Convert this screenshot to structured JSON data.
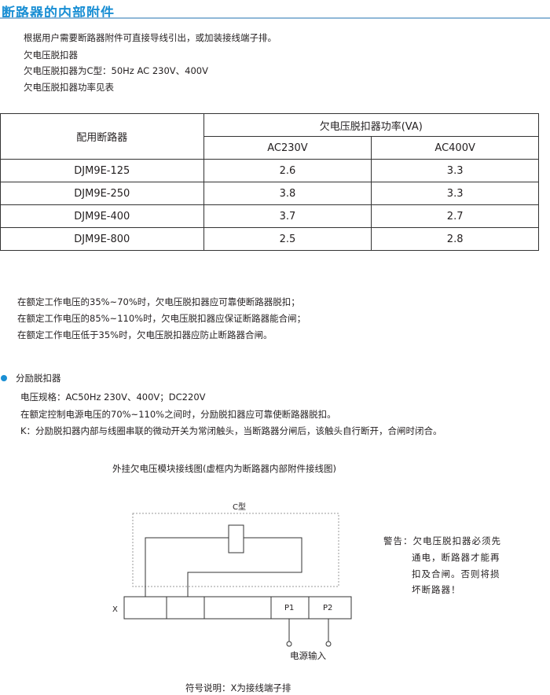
{
  "title": "断路器的内部附件",
  "intro": [
    "根据用户需要断路器附件可直接导线引出，或加装接线端子排。",
    "欠电压脱扣器",
    "欠电压脱扣器为C型：50Hz AC 230V、400V",
    "欠电压脱扣器功率见表"
  ],
  "table": {
    "col_header": "配用断路器",
    "group_header": "欠电压脱扣器功率(VA)",
    "sub_headers": [
      "AC230V",
      "AC400V"
    ],
    "rows": [
      [
        "DJM9E-125",
        "2.6",
        "3.3"
      ],
      [
        "DJM9E-250",
        "3.8",
        "3.3"
      ],
      [
        "DJM9E-400",
        "3.7",
        "2.7"
      ],
      [
        "DJM9E-800",
        "2.5",
        "2.8"
      ]
    ]
  },
  "conditions": [
    "在额定工作电压的35%~70%时，欠电压脱扣器应可靠使断路器脱扣；",
    "在额定工作电压的85%~110%时，欠电压脱扣器应保证断路器能合闸；",
    "在额定工作电压低于35%时，欠电压脱扣器应防止断路器合闸。"
  ],
  "shunt": {
    "heading": "分励脱扣器",
    "bullet_color": "#1a8fd4",
    "lines": [
      "电压规格：AC50Hz  230V、400V；DC220V",
      "在额定控制电源电压的70%~110%之间时，分励脱扣器应可靠使断路器脱扣。",
      "K：分励脱扣器内部与线圈串联的微动开关为常闭触头，当断路器分闸后，该触头自行断开，合闸时闭合。"
    ]
  },
  "diagram": {
    "caption": "外挂欠电压模块接线图(虚框内为断路器内部附件接线图)",
    "box_label": "C型",
    "strip_label": "X",
    "terminals": [
      "P1",
      "P2"
    ],
    "power_label": "电源输入",
    "warning": [
      "警告：欠电压脱扣器必须先",
      "通电，断路器才能再",
      "扣及合闸。否则将损",
      "坏断路器！"
    ],
    "legend": "符号说明：X为接线端子排"
  }
}
